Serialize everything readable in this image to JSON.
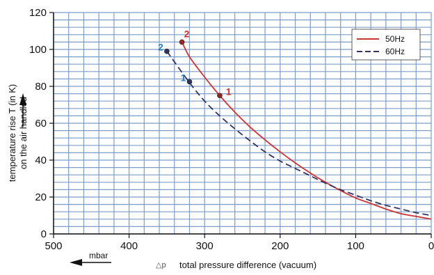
{
  "chart_data": {
    "type": "line",
    "xlabel": "total pressure difference (vacuum)",
    "xlabel_prefix": "△p",
    "x_unit": "mbar",
    "ylabel_line1": "temperature rise T (in K)",
    "ylabel_line2": "on the air handled",
    "xlim": [
      500,
      0
    ],
    "ylim": [
      0,
      120
    ],
    "x_ticks": [
      500,
      400,
      300,
      200,
      100,
      0
    ],
    "y_ticks": [
      0,
      20,
      40,
      60,
      80,
      100,
      120
    ],
    "x_minor_step": 20,
    "y_minor_step": 4,
    "grid": true,
    "legend_position": "top-right",
    "series": [
      {
        "name": "50Hz",
        "color": "#cc3333",
        "dash": "solid",
        "x": [
          330,
          320,
          300,
          280,
          260,
          240,
          220,
          200,
          180,
          160,
          140,
          120,
          100,
          80,
          60,
          40,
          20,
          0
        ],
        "y": [
          104,
          96,
          85,
          75,
          66,
          58,
          51,
          44.5,
          38.5,
          33,
          28,
          23.5,
          19.5,
          16.5,
          13.5,
          11,
          9.5,
          8
        ]
      },
      {
        "name": "60Hz",
        "color": "#33335f",
        "dash": "dashed",
        "x": [
          350,
          320,
          300,
          280,
          260,
          240,
          220,
          200,
          180,
          160,
          140,
          120,
          100,
          80,
          60,
          40,
          20,
          0
        ],
        "y": [
          99,
          82,
          72,
          64,
          57,
          50.5,
          44.5,
          39.5,
          35.5,
          31.5,
          27.5,
          24,
          21,
          18,
          15.5,
          13.5,
          11.5,
          10
        ]
      }
    ],
    "markers": [
      {
        "label": "2",
        "series": "50Hz",
        "x": 330,
        "y": 104,
        "color": "#cc3333",
        "dot_color": "#a02626"
      },
      {
        "label": "1",
        "series": "50Hz",
        "x": 280,
        "y": 75,
        "color": "#cc3333",
        "dot_color": "#8a2a1f"
      },
      {
        "label": "2",
        "series": "60Hz",
        "x": 350,
        "y": 99,
        "color": "#2a7fbf",
        "dot_color": "#33335f"
      },
      {
        "label": "1",
        "series": "60Hz",
        "x": 320,
        "y": 82.5,
        "color": "#2a7fbf",
        "dot_color": "#33335f"
      }
    ],
    "colors": {
      "grid": "#7d9cc6",
      "plot_bg": "#ffffff",
      "axis": "#111111",
      "text": "#111111"
    }
  }
}
